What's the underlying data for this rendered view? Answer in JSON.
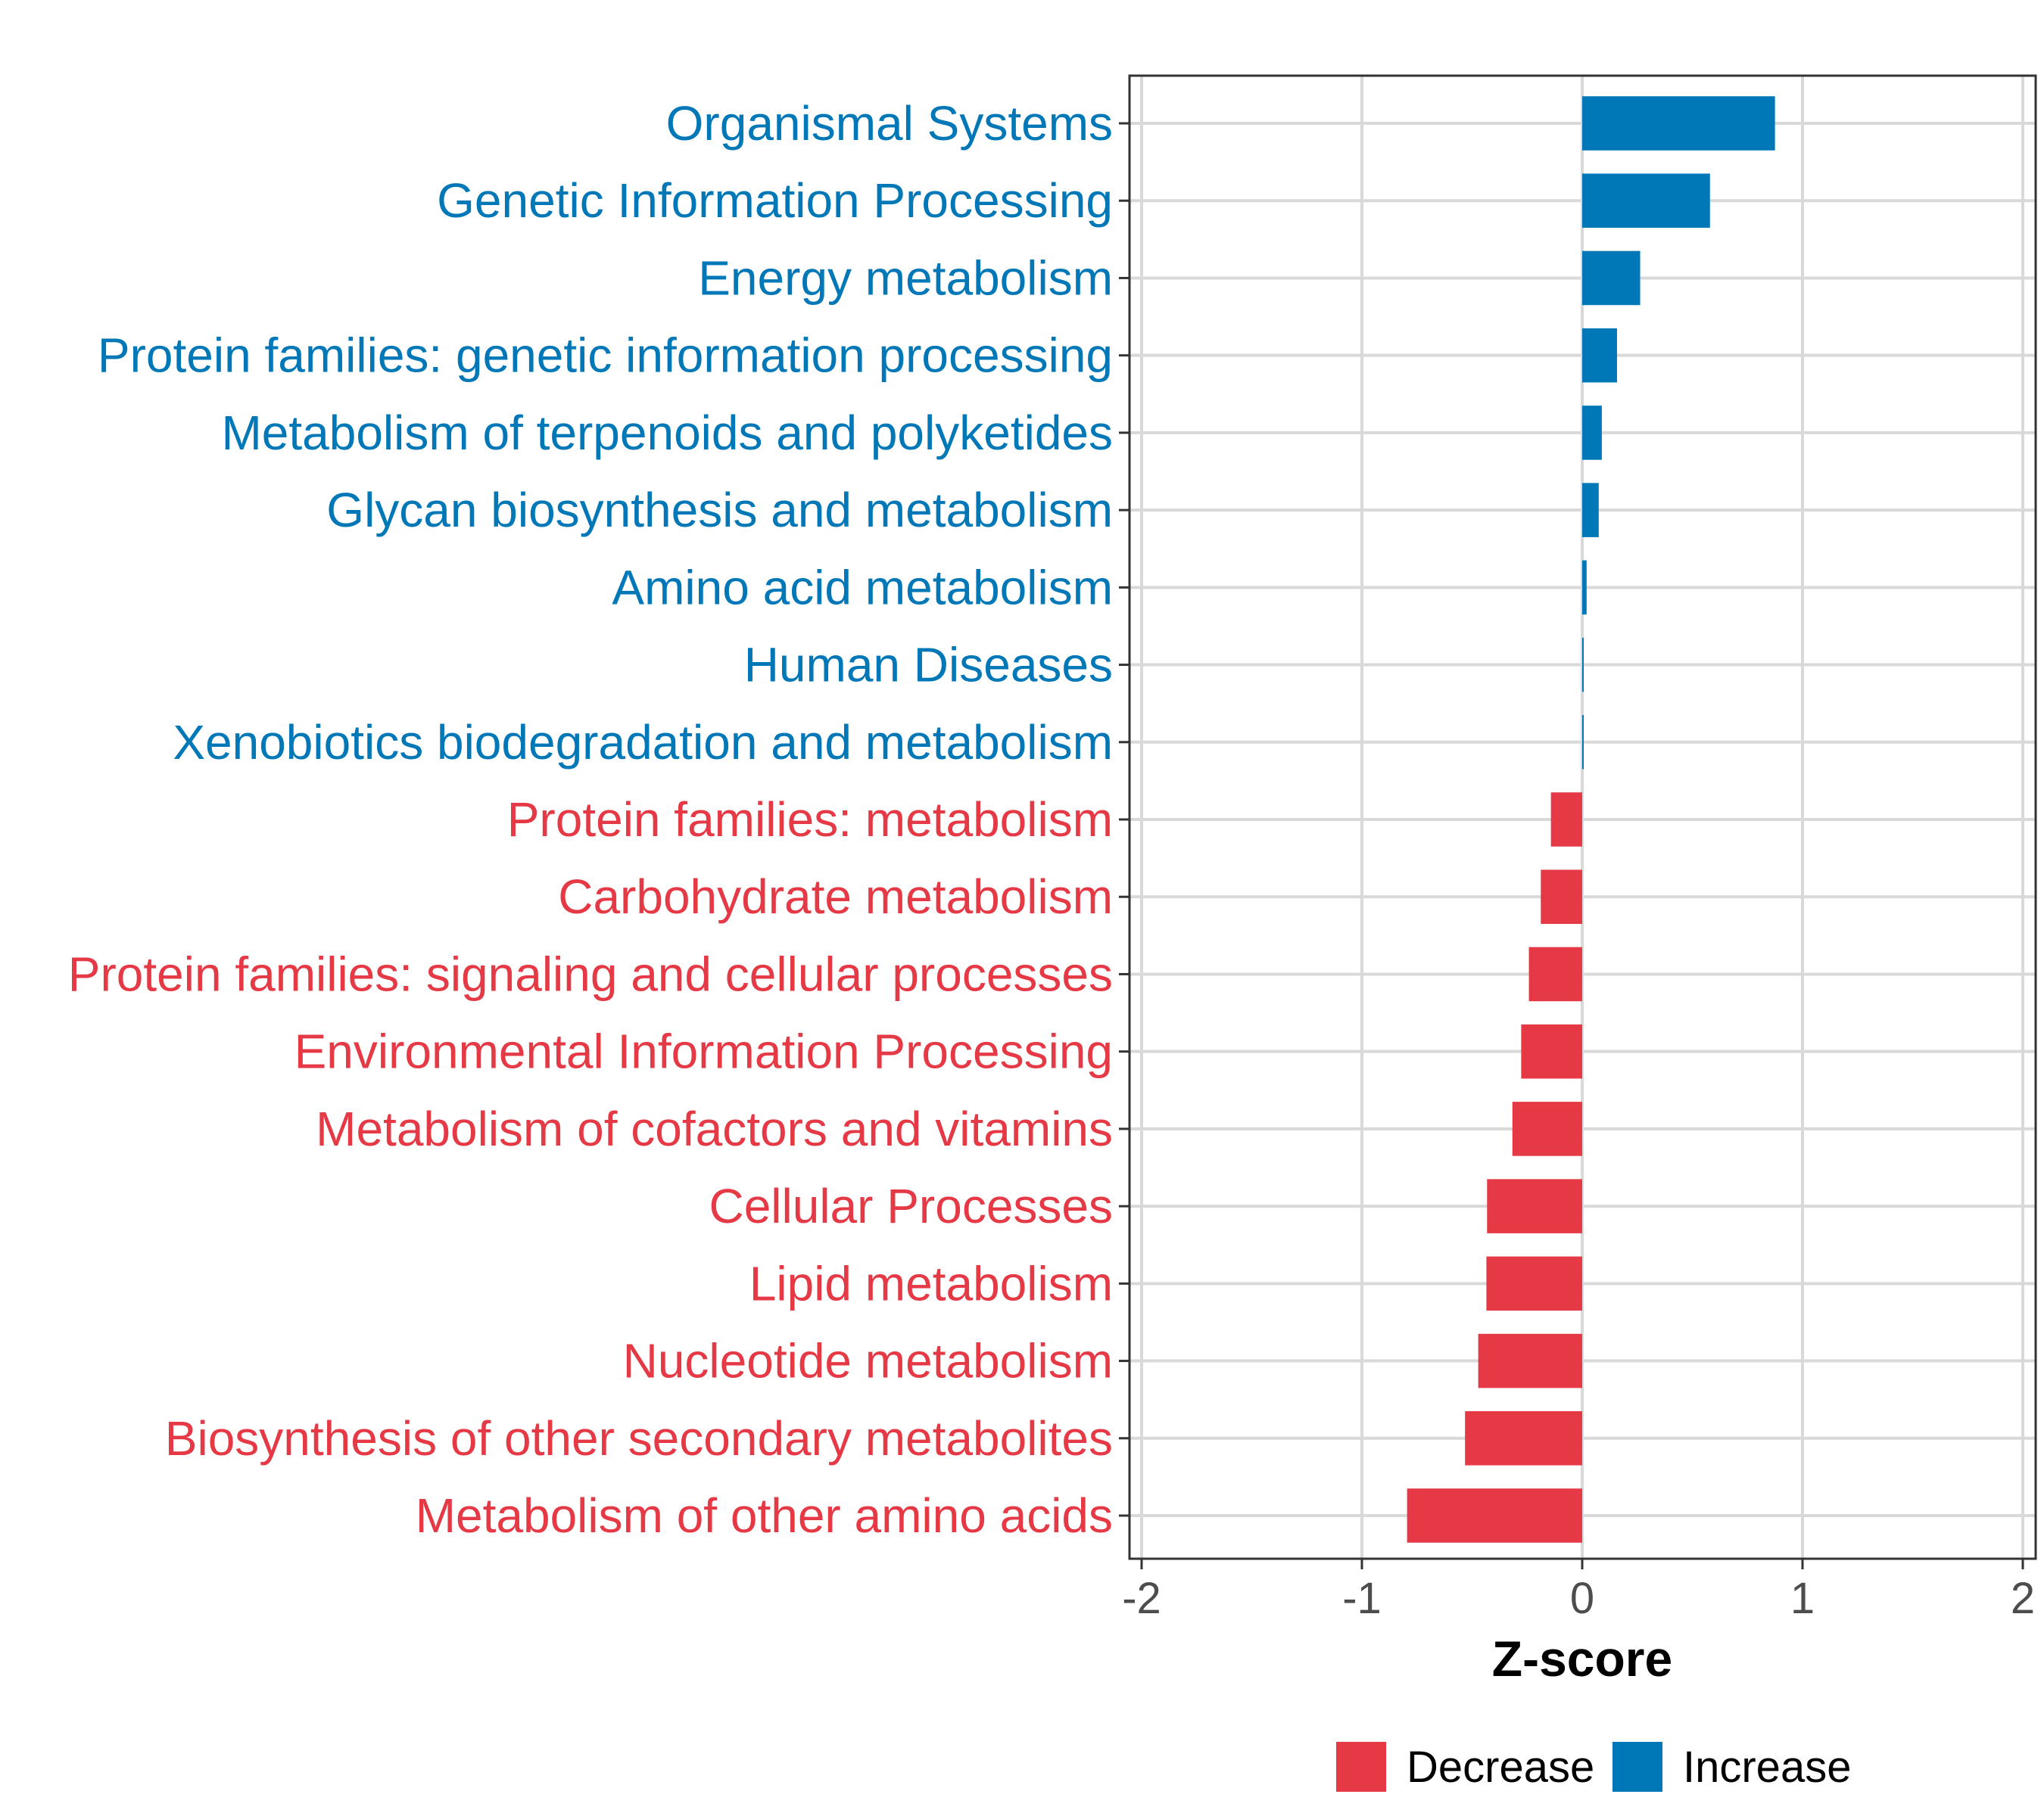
{
  "chart_data": {
    "type": "bar",
    "orientation": "horizontal",
    "title": "",
    "xlabel": "Z-score",
    "ylabel": "",
    "xlim": [
      -2,
      2
    ],
    "x_ticks": [
      -2,
      -1,
      0,
      1,
      2
    ],
    "x_tick_labels": [
      "-2",
      "-1",
      "0",
      "1",
      "2"
    ],
    "grid": true,
    "legend_position": "bottom",
    "colors": {
      "Decrease": "#E63946",
      "Increase": "#0077B6"
    },
    "categories": [
      "Organismal Systems",
      "Genetic Information Processing",
      "Energy metabolism",
      "Protein families: genetic information processing",
      "Metabolism of terpenoids and polyketides",
      "Glycan biosynthesis and metabolism",
      "Amino acid metabolism",
      "Human Diseases",
      "Xenobiotics biodegradation and metabolism",
      "Protein families: metabolism",
      "Carbohydrate metabolism",
      "Protein families: signaling and cellular processes",
      "Environmental Information Processing",
      "Metabolism of cofactors and vitamins",
      "Cellular Processes",
      "Lipid metabolism",
      "Nucleotide metabolism",
      "Biosynthesis of other secondary metabolites",
      "Metabolism of other amino acids"
    ],
    "values": [
      0.875,
      0.58,
      0.263,
      0.158,
      0.089,
      0.075,
      0.02,
      0.005,
      0.005,
      -0.142,
      -0.188,
      -0.242,
      -0.277,
      -0.317,
      -0.432,
      -0.435,
      -0.472,
      -0.532,
      -0.795
    ],
    "groups": [
      "Increase",
      "Increase",
      "Increase",
      "Increase",
      "Increase",
      "Increase",
      "Increase",
      "Increase",
      "Increase",
      "Decrease",
      "Decrease",
      "Decrease",
      "Decrease",
      "Decrease",
      "Decrease",
      "Decrease",
      "Decrease",
      "Decrease",
      "Decrease"
    ],
    "legend": [
      "Decrease",
      "Increase"
    ]
  }
}
